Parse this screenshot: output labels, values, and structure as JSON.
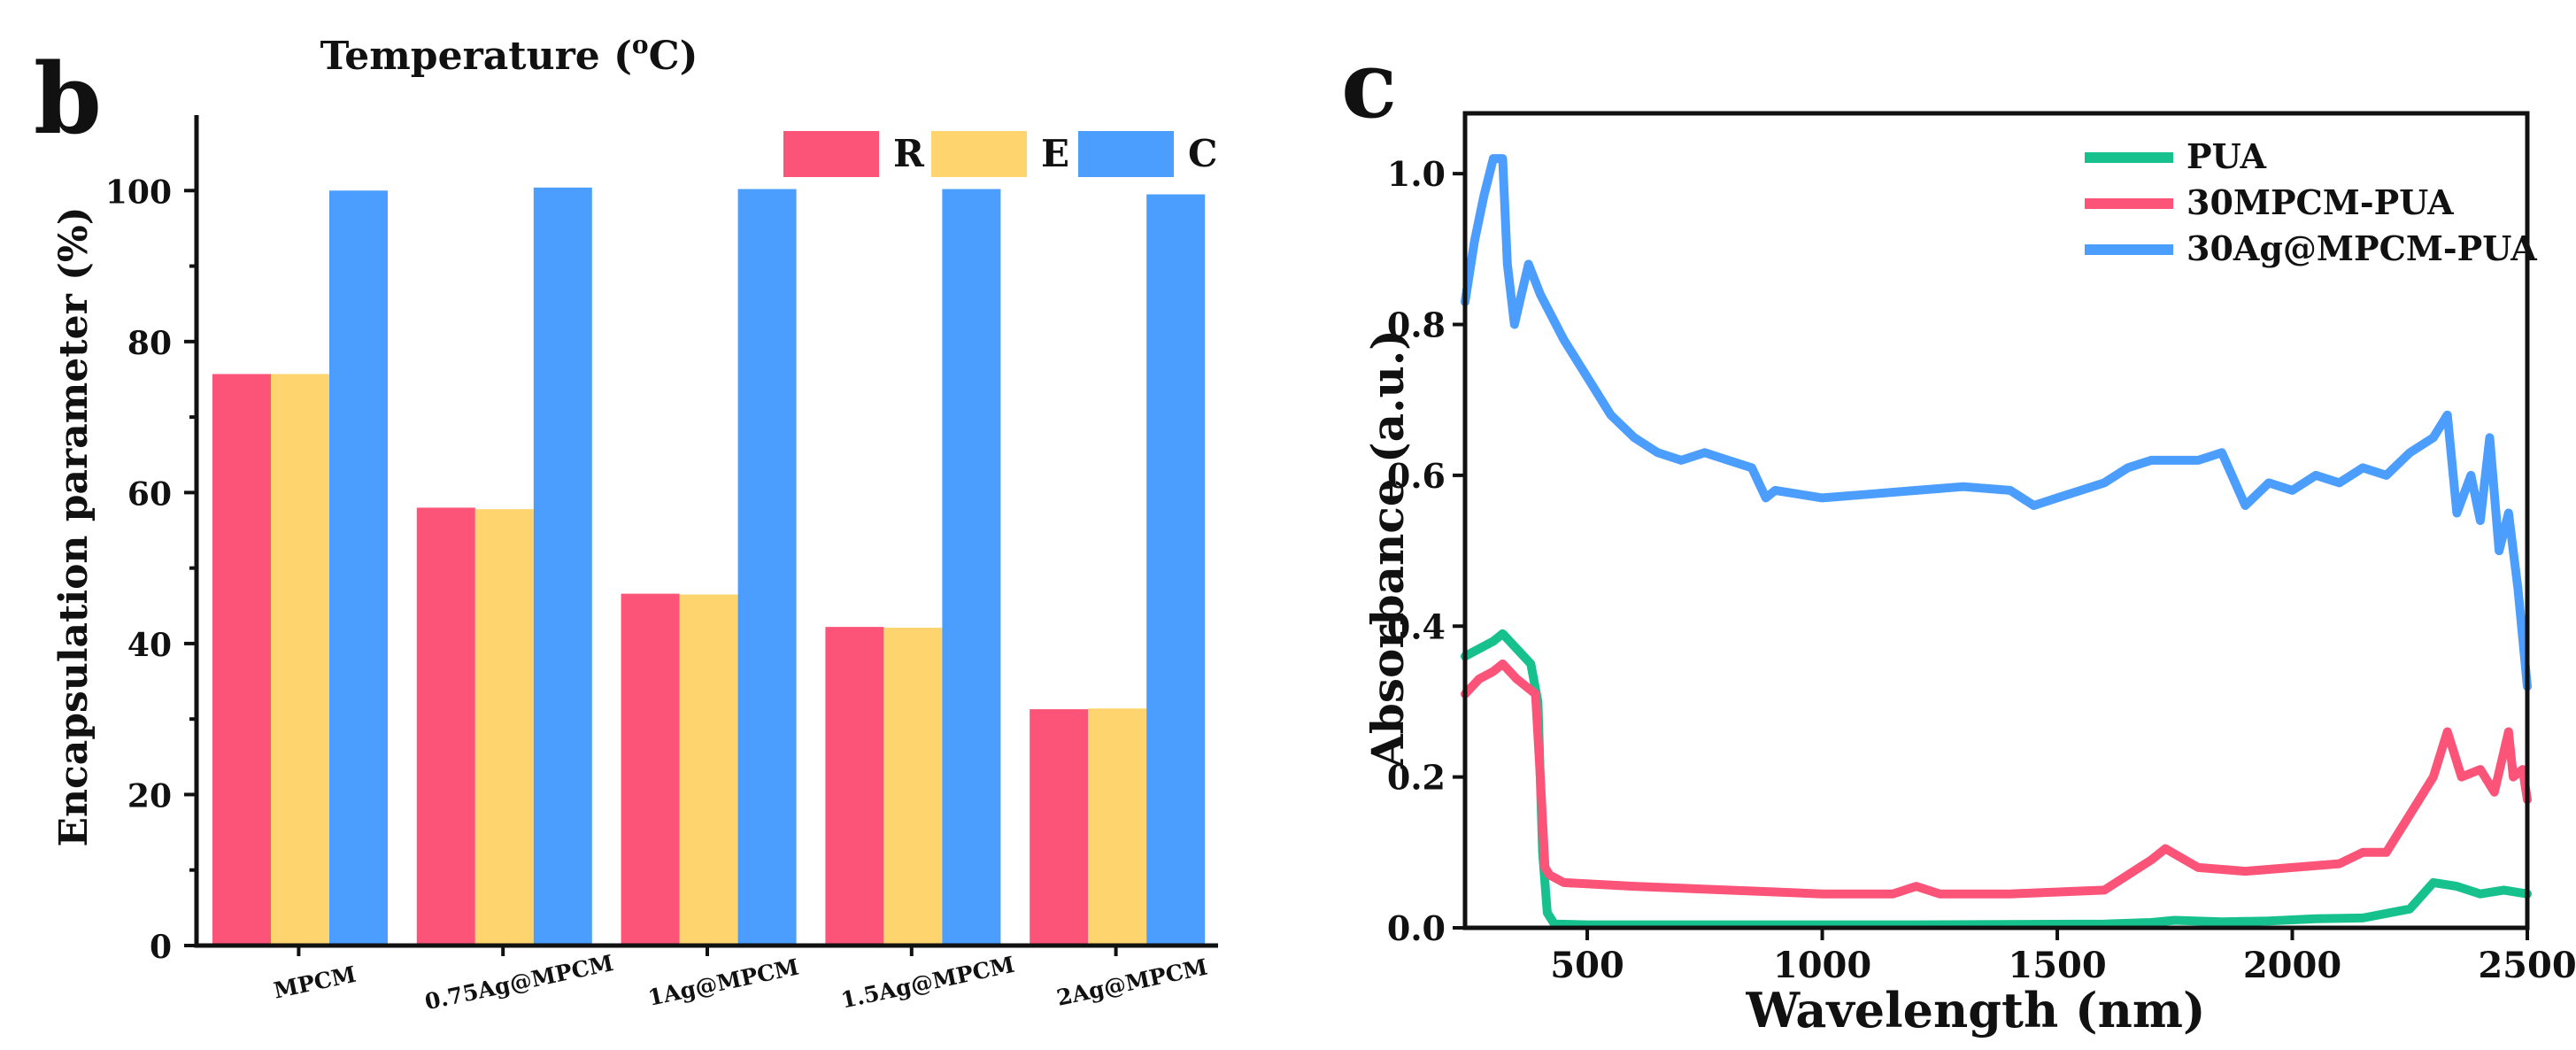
{
  "chart_data": [
    {
      "panel_label": "b",
      "type": "bar",
      "title": "Temperature (",
      "title_sup": "o",
      "title_tail": "C)",
      "ylabel": "Encapsulation parameter (%)",
      "xlabel": "",
      "ylim": [
        0,
        110
      ],
      "yticks": [
        "0",
        "20",
        "40",
        "60",
        "80",
        "100"
      ],
      "categories": [
        "MPCM",
        "0.75Ag@MPCM",
        "1Ag@MPCM",
        "1.5Ag@MPCM",
        "2Ag@MPCM"
      ],
      "series": [
        {
          "name": "R",
          "color": "#fc5478",
          "values": [
            75.7,
            58.0,
            46.6,
            42.2,
            31.3
          ]
        },
        {
          "name": "E",
          "color": "#fed46e",
          "values": [
            75.7,
            57.8,
            46.5,
            42.1,
            31.4
          ]
        },
        {
          "name": "C",
          "color": "#4b9dfe",
          "values": [
            100.0,
            100.4,
            100.2,
            100.2,
            99.5
          ]
        }
      ],
      "legend_position": "top-right"
    },
    {
      "panel_label": "c",
      "type": "line",
      "xlabel": "Wavelength (nm)",
      "ylabel": "Absorbance (a.u.)",
      "xlim": [
        240,
        2500
      ],
      "ylim": [
        0,
        1.08
      ],
      "xticks": [
        "500",
        "1000",
        "1500",
        "2000",
        "2500"
      ],
      "yticks": [
        "0.0",
        "0.2",
        "0.4",
        "0.6",
        "0.8",
        "1.0"
      ],
      "legend_position": "top-right",
      "series": [
        {
          "name": "PUA",
          "color": "#17c18d",
          "x": [
            240,
            270,
            300,
            320,
            350,
            380,
            395,
            405,
            415,
            430,
            500,
            800,
            1200,
            1600,
            1700,
            1750,
            1850,
            1950,
            2050,
            2150,
            2250,
            2300,
            2350,
            2400,
            2450,
            2500
          ],
          "y": [
            0.36,
            0.37,
            0.38,
            0.39,
            0.37,
            0.35,
            0.3,
            0.1,
            0.02,
            0.005,
            0.004,
            0.004,
            0.004,
            0.005,
            0.007,
            0.01,
            0.008,
            0.009,
            0.012,
            0.013,
            0.025,
            0.06,
            0.055,
            0.045,
            0.05,
            0.045
          ]
        },
        {
          "name": "30MPCM-PUA",
          "color": "#fc5478",
          "x": [
            240,
            270,
            300,
            320,
            350,
            390,
            400,
            410,
            420,
            450,
            600,
            800,
            1000,
            1150,
            1200,
            1250,
            1400,
            1600,
            1700,
            1730,
            1800,
            1900,
            2000,
            2100,
            2150,
            2200,
            2250,
            2300,
            2330,
            2360,
            2400,
            2430,
            2460,
            2470,
            2490,
            2500
          ],
          "y": [
            0.31,
            0.33,
            0.34,
            0.35,
            0.33,
            0.31,
            0.2,
            0.08,
            0.07,
            0.06,
            0.055,
            0.05,
            0.045,
            0.045,
            0.055,
            0.045,
            0.045,
            0.05,
            0.09,
            0.105,
            0.08,
            0.075,
            0.08,
            0.085,
            0.1,
            0.1,
            0.15,
            0.2,
            0.26,
            0.2,
            0.21,
            0.18,
            0.26,
            0.2,
            0.21,
            0.17
          ]
        },
        {
          "name": "30Ag@MPCM-PUA",
          "color": "#4b9dfe",
          "x": [
            240,
            260,
            280,
            300,
            320,
            330,
            345,
            360,
            375,
            400,
            450,
            500,
            550,
            600,
            650,
            700,
            750,
            800,
            850,
            880,
            900,
            1000,
            1100,
            1200,
            1300,
            1400,
            1450,
            1500,
            1600,
            1650,
            1700,
            1800,
            1850,
            1900,
            1950,
            2000,
            2050,
            2100,
            2150,
            2200,
            2250,
            2300,
            2330,
            2350,
            2380,
            2400,
            2420,
            2440,
            2460,
            2480,
            2500
          ],
          "y": [
            0.83,
            0.91,
            0.97,
            1.02,
            1.02,
            0.88,
            0.8,
            0.84,
            0.88,
            0.84,
            0.78,
            0.73,
            0.68,
            0.65,
            0.63,
            0.62,
            0.63,
            0.62,
            0.61,
            0.57,
            0.58,
            0.57,
            0.575,
            0.58,
            0.585,
            0.58,
            0.56,
            0.57,
            0.59,
            0.61,
            0.62,
            0.62,
            0.63,
            0.56,
            0.59,
            0.58,
            0.6,
            0.59,
            0.61,
            0.6,
            0.63,
            0.65,
            0.68,
            0.55,
            0.6,
            0.54,
            0.65,
            0.5,
            0.55,
            0.45,
            0.32
          ]
        }
      ]
    }
  ]
}
